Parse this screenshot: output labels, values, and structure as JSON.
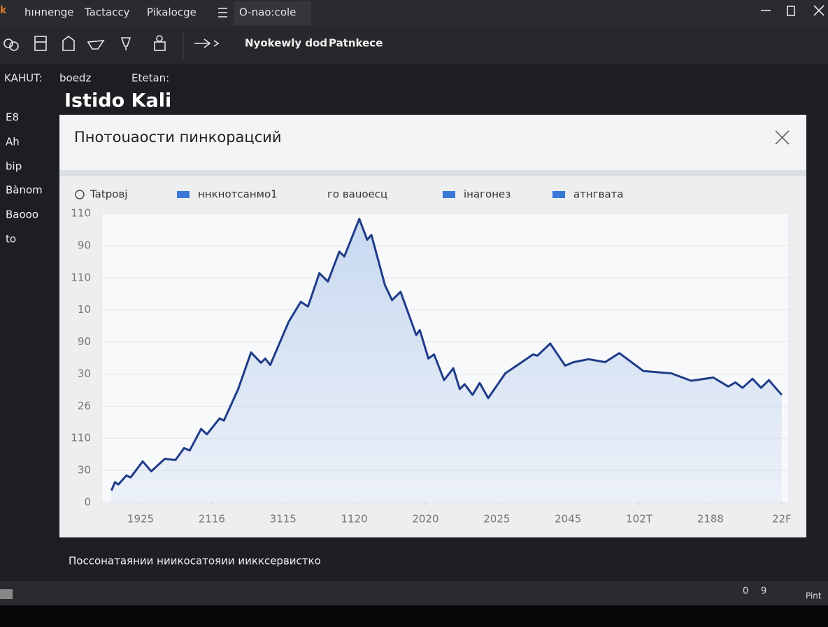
{
  "ui": {
    "tabs": [
      "hıнnenge",
      "Tactaccy",
      "Pikalocge",
      "O-nao:cole"
    ],
    "toolbar": [
      "Nyokewly dod",
      "Patnkece"
    ],
    "fields": [
      "KAHUT:",
      "boedz",
      "Etetan:"
    ],
    "heading": "Istido Kali",
    "sidebar": [
      "E8",
      "Ah",
      "bip",
      "Bànom",
      "Baooo",
      "to"
    ],
    "footer": "Поссонатаянии ниикосатояии иикксервистко",
    "status": [
      "0",
      "9",
      "Pint"
    ]
  },
  "chart_data": {
    "type": "line",
    "title": "Пнотоuaости пинкоpaцсий",
    "legend": [
      {
        "label": "Tatpoвj",
        "marker": "circle"
      },
      {
        "label": "ннкнотсанмо1",
        "marker": "square"
      },
      {
        "label": "го ваuoесц",
        "marker": "none"
      },
      {
        "label": "інагонез",
        "marker": "square"
      },
      {
        "label": "атнгвата",
        "marker": "square"
      }
    ],
    "legend_color": "#3a78d8",
    "color": "#1f3c88",
    "fill_color": "#c6d7f0",
    "grid": true,
    "x": [
      -0.41,
      -0.36,
      -0.31,
      -0.2,
      -0.14,
      0.03,
      0.15,
      0.34,
      0.41,
      0.49,
      0.61,
      0.69,
      0.85,
      0.93,
      1.11,
      1.17,
      1.37,
      1.55,
      1.69,
      1.75,
      1.82,
      2.08,
      2.25,
      2.35,
      2.51,
      2.63,
      2.79,
      2.86,
      3.07,
      3.18,
      3.24,
      3.43,
      3.53,
      3.65,
      3.87,
      3.92,
      4.04,
      4.12,
      4.26,
      4.39,
      4.48,
      4.55,
      4.66,
      4.76,
      4.88,
      5.12,
      5.51,
      5.57,
      5.75,
      5.96,
      6.08,
      6.29,
      6.52,
      6.72,
      7.06,
      7.45,
      7.73,
      8.04,
      8.25,
      8.35,
      8.45,
      8.59,
      8.71,
      8.82,
      9.0
    ],
    "values": [
      3.7,
      6.3,
      5.6,
      8.4,
      7.8,
      12.8,
      9.7,
      13.6,
      13.4,
      13.2,
      16.9,
      16.2,
      22.9,
      21.2,
      26.2,
      25.5,
      35.3,
      46.7,
      43.5,
      44.8,
      42.8,
      56.3,
      62.5,
      61.0,
      71.4,
      68.8,
      78.1,
      76.6,
      88.3,
      81.8,
      83.3,
      67.7,
      63.0,
      65.6,
      52.1,
      53.7,
      44.8,
      46.1,
      38.1,
      41.8,
      35.3,
      36.8,
      33.5,
      37.2,
      32.5,
      40.2,
      46.1,
      45.7,
      49.5,
      42.6,
      43.7,
      44.6,
      43.7,
      46.5,
      40.9,
      40.2,
      37.9,
      38.9,
      36.1,
      37.4,
      35.7,
      38.5,
      35.7,
      38.1,
      33.5
    ],
    "xlim": [
      -0.55,
      9.1
    ],
    "ylim": [
      0,
      90
    ],
    "xticks": [
      {
        "value": 0,
        "label": "1925"
      },
      {
        "value": 1,
        "label": "2116"
      },
      {
        "value": 2,
        "label": "3115"
      },
      {
        "value": 3,
        "label": "1120"
      },
      {
        "value": 4,
        "label": "2020"
      },
      {
        "value": 5,
        "label": "2025"
      },
      {
        "value": 6,
        "label": "2045"
      },
      {
        "value": 7,
        "label": "102T"
      },
      {
        "value": 8,
        "label": "2188"
      },
      {
        "value": 9,
        "label": "22F"
      }
    ],
    "yticks": [
      0,
      {
        "value": 10,
        "label": "30"
      },
      {
        "value": 20,
        "label": "110"
      },
      {
        "value": 30,
        "label": "26"
      },
      {
        "value": 40,
        "label": "30"
      },
      {
        "value": 50,
        "label": "90"
      },
      {
        "value": 60,
        "label": "10"
      },
      {
        "value": 70,
        "label": "110"
      },
      {
        "value": 80,
        "label": "90"
      },
      {
        "value": 90,
        "label": "110"
      }
    ]
  }
}
